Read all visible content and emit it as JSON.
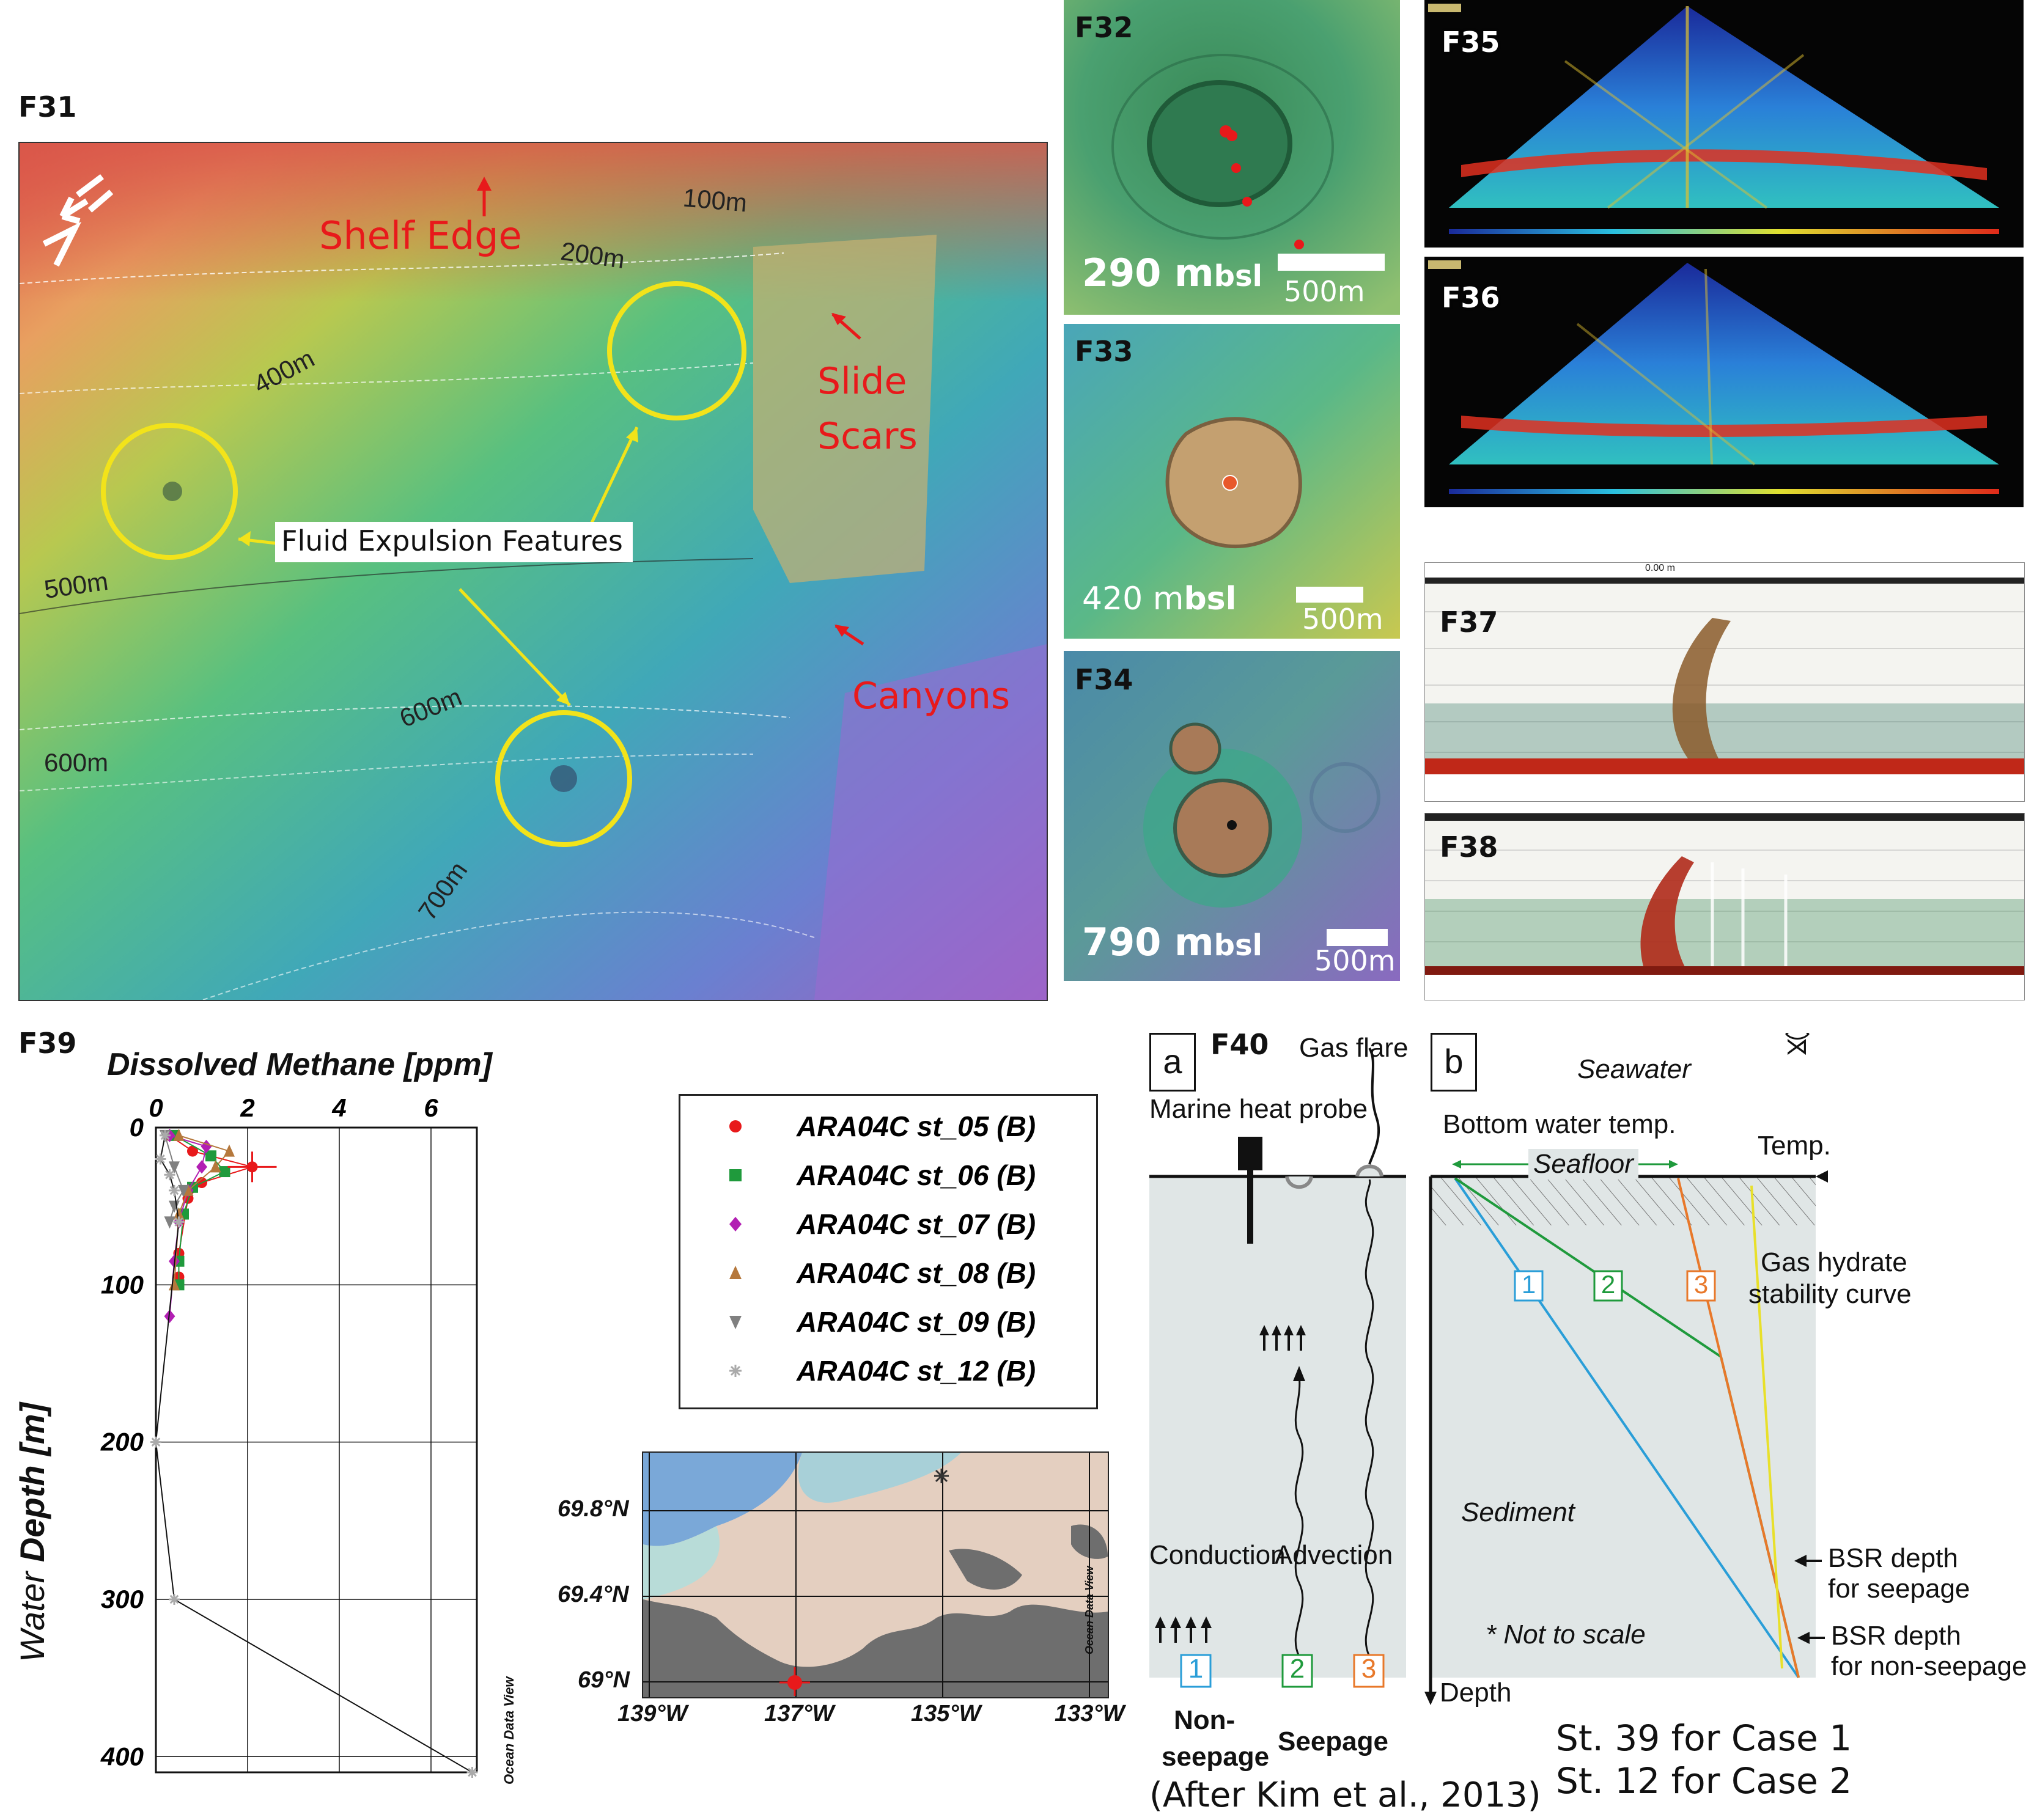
{
  "panels": {
    "f31": "F31",
    "f32": "F32",
    "f33": "F33",
    "f34": "F34",
    "f35": "F35",
    "f36": "F36",
    "f37": "F37",
    "f38": "F38",
    "f39": "F39",
    "f40": "F40"
  },
  "f31_map": {
    "shelf_edge": "Shelf Edge",
    "slide_scars_1": "Slide",
    "slide_scars_2": "Scars",
    "canyons": "Canyons",
    "fluid_features": "Fluid Expulsion Features",
    "contours": [
      "100m",
      "200m",
      "400m",
      "500m",
      "600m",
      "600m",
      "700m"
    ]
  },
  "f32": {
    "depth_num": "290 m",
    "depth_unit": "bsl",
    "scale": "500m"
  },
  "f33": {
    "depth_num": "420 m",
    "depth_unit": "bsl",
    "scale": "500m"
  },
  "f34": {
    "depth_num": "790 m",
    "depth_unit": "bsl",
    "scale": "500m"
  },
  "f37": {
    "header": "0.00 m"
  },
  "f39": {
    "title": "Dissolved Methane [ppm]",
    "ylabel_italic": "Water",
    "ylabel_bold": "Depth [m]",
    "watermark": "Ocean Data View",
    "legend": [
      {
        "label": "ARA04C st_05 (B)",
        "color": "#e8191b",
        "marker": "circle"
      },
      {
        "label": "ARA04C st_06 (B)",
        "color": "#1f9a3c",
        "marker": "square"
      },
      {
        "label": "ARA04C st_07 (B)",
        "color": "#b21fb3",
        "marker": "diamond"
      },
      {
        "label": "ARA04C st_08 (B)",
        "color": "#b5783c",
        "marker": "triangle-up"
      },
      {
        "label": "ARA04C st_09 (B)",
        "color": "#808080",
        "marker": "triangle-down"
      },
      {
        "label": "ARA04C st_12 (B)",
        "color": "#aaaaaa",
        "marker": "asterisk"
      }
    ]
  },
  "chart_data": [
    {
      "type": "scatter",
      "title": "Dissolved Methane [ppm]",
      "xlabel": "Dissolved Methane [ppm]",
      "ylabel": "Water Depth [m]",
      "xlim": [
        0,
        7
      ],
      "ylim": [
        0,
        410
      ],
      "y_inverted": true,
      "x_ticks": [
        0,
        2,
        4,
        6
      ],
      "y_ticks": [
        0,
        100,
        200,
        300,
        400
      ],
      "series": [
        {
          "name": "ARA04C st_05 (B)",
          "x": [
            0.3,
            0.8,
            2.1,
            1.0,
            0.7,
            0.5,
            0.5
          ],
          "y": [
            5,
            15,
            25,
            35,
            45,
            80,
            95
          ]
        },
        {
          "name": "ARA04C st_06 (B)",
          "x": [
            0.4,
            1.2,
            1.5,
            0.8,
            0.6,
            0.5,
            0.5
          ],
          "y": [
            5,
            18,
            28,
            38,
            55,
            85,
            100
          ]
        },
        {
          "name": "ARA04C st_07 (B)",
          "x": [
            0.3,
            1.1,
            1.0,
            0.7,
            0.5,
            0.4,
            0.3
          ],
          "y": [
            5,
            12,
            25,
            40,
            60,
            85,
            120
          ]
        },
        {
          "name": "ARA04C st_08 (B)",
          "x": [
            0.5,
            1.6,
            1.3,
            0.7,
            0.5,
            0.4
          ],
          "y": [
            5,
            15,
            25,
            40,
            55,
            100
          ]
        },
        {
          "name": "ARA04C st_09 (B)",
          "x": [
            0.2,
            0.4,
            0.6,
            0.4,
            0.3
          ],
          "y": [
            5,
            25,
            40,
            50,
            60
          ]
        },
        {
          "name": "ARA04C st_12 (B)",
          "x": [
            0.2,
            0.1,
            0.3,
            0.4,
            0.5,
            0.0,
            0.4,
            6.9
          ],
          "y": [
            5,
            20,
            30,
            40,
            60,
            200,
            300,
            410
          ]
        }
      ]
    },
    {
      "type": "scatter",
      "title": "",
      "xlabel": "",
      "ylabel": "",
      "x_ticks_labels": [
        "139°W",
        "137°W",
        "135°W",
        "133°W"
      ],
      "y_ticks_labels": [
        "69.8°N",
        "69.4°N",
        "69°N"
      ],
      "x": [
        -137.0,
        -135.0
      ],
      "y": [
        69.0,
        69.85
      ],
      "watermark": "Ocean Data View"
    }
  ],
  "f39_map": {
    "lat_labels": [
      "69.8°N",
      "69.4°N",
      "69°N"
    ],
    "lon_labels": [
      "139°W",
      "137°W",
      "135°W",
      "133°W"
    ],
    "watermark": "Ocean Data View"
  },
  "f40": {
    "a_label": "a",
    "b_label": "b",
    "gas_flare": "Gas flare",
    "marine_heat_probe": "Marine heat probe",
    "conduction": "Conduction",
    "advection": "Advection",
    "box1": "1",
    "box2": "2",
    "box3": "3",
    "non_seepage_1": "Non-",
    "non_seepage_2": "seepage",
    "seepage": "Seepage",
    "after": "(After Kim et al., 2013)",
    "seawater": "Seawater",
    "bottom_temp": "Bottom water temp.",
    "temp_axis": "Temp.",
    "seafloor": "Seafloor",
    "gas_hydrate_1": "Gas hydrate",
    "gas_hydrate_2": "stability curve",
    "sediment": "Sediment",
    "not_to_scale": "* Not to scale",
    "bsr_seep_1": "BSR depth",
    "bsr_seep_2": "for seepage",
    "bsr_non_1": "BSR depth",
    "bsr_non_2": "for non-seepage",
    "depth_axis": "Depth"
  },
  "notes": {
    "line1": "St. 39 for Case 1",
    "line2": "St. 12 for Case 2"
  },
  "colors": {
    "case1": "#2a9ed8",
    "case2": "#1f9a3c",
    "case3": "#e8782a",
    "hydrate": "#e8e02a",
    "panel_bg": "#e0e6e6",
    "annotation_red": "#e8191b",
    "circle_yellow": "#f2e31a"
  }
}
